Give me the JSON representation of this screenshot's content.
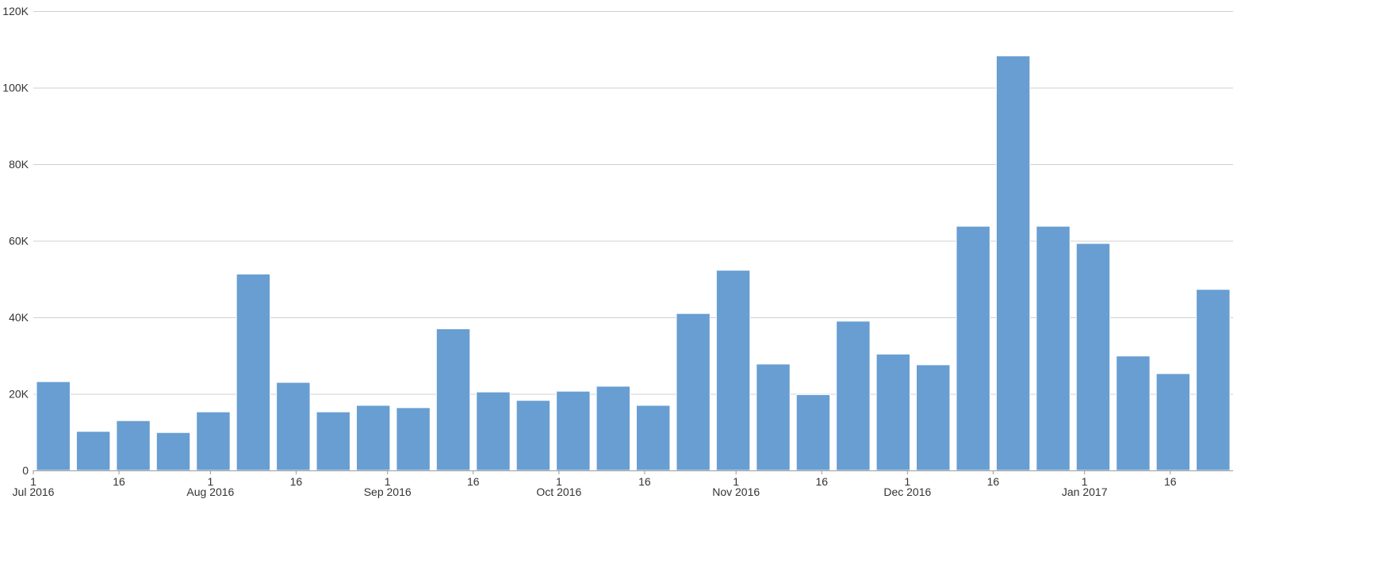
{
  "chart_data": {
    "type": "bar",
    "title": "",
    "xlabel": "",
    "ylabel": "",
    "ylim": [
      0,
      120000
    ],
    "y_ticks": [
      0,
      20000,
      40000,
      60000,
      80000,
      100000,
      120000
    ],
    "y_tick_labels": [
      "0",
      "20K",
      "40K",
      "60K",
      "80K",
      "100K",
      "120K"
    ],
    "grid": true,
    "legend": false,
    "colors": {
      "bar": "#689ed2",
      "grid": "#d0d0d0",
      "axis": "#999999"
    },
    "x_axis_type": "date",
    "categories": [
      "2016-07-01",
      "2016-07-08",
      "2016-07-15",
      "2016-07-22",
      "2016-07-29",
      "2016-08-05",
      "2016-08-12",
      "2016-08-19",
      "2016-08-26",
      "2016-09-02",
      "2016-09-09",
      "2016-09-16",
      "2016-09-23",
      "2016-09-30",
      "2016-10-07",
      "2016-10-14",
      "2016-10-21",
      "2016-10-28",
      "2016-11-04",
      "2016-11-11",
      "2016-11-18",
      "2016-11-25",
      "2016-12-02",
      "2016-12-09",
      "2016-12-16",
      "2016-12-23",
      "2016-12-30",
      "2017-01-06",
      "2017-01-13",
      "2017-01-20"
    ],
    "values": [
      23200,
      10200,
      13000,
      9900,
      15300,
      51300,
      23000,
      15300,
      17000,
      16400,
      37000,
      20500,
      18300,
      20700,
      22000,
      17000,
      41000,
      52300,
      27800,
      19800,
      39000,
      30400,
      27600,
      63800,
      108300,
      63800,
      59300,
      29900,
      25300,
      47300
    ],
    "x_ticks": [
      {
        "date": "2016-07-01",
        "label": "1",
        "sublabel": "Jul 2016"
      },
      {
        "date": "2016-07-16",
        "label": "16",
        "sublabel": ""
      },
      {
        "date": "2016-08-01",
        "label": "1",
        "sublabel": "Aug 2016"
      },
      {
        "date": "2016-08-16",
        "label": "16",
        "sublabel": ""
      },
      {
        "date": "2016-09-01",
        "label": "1",
        "sublabel": "Sep 2016"
      },
      {
        "date": "2016-09-16",
        "label": "16",
        "sublabel": ""
      },
      {
        "date": "2016-10-01",
        "label": "1",
        "sublabel": "Oct 2016"
      },
      {
        "date": "2016-10-16",
        "label": "16",
        "sublabel": ""
      },
      {
        "date": "2016-11-01",
        "label": "1",
        "sublabel": "Nov 2016"
      },
      {
        "date": "2016-11-16",
        "label": "16",
        "sublabel": ""
      },
      {
        "date": "2016-12-01",
        "label": "1",
        "sublabel": "Dec 2016"
      },
      {
        "date": "2016-12-16",
        "label": "16",
        "sublabel": ""
      },
      {
        "date": "2017-01-01",
        "label": "1",
        "sublabel": "Jan 2017"
      },
      {
        "date": "2017-01-16",
        "label": "16",
        "sublabel": ""
      }
    ]
  }
}
